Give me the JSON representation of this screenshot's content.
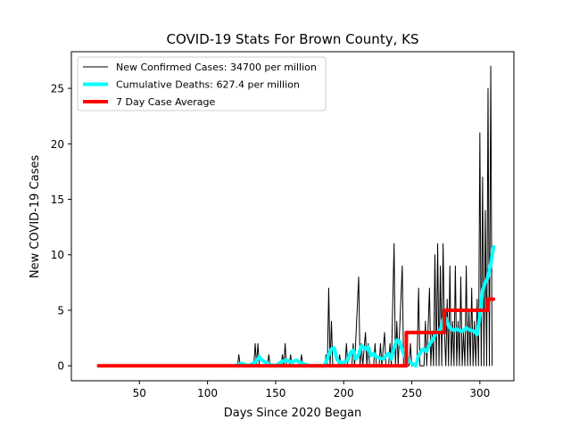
{
  "chart_data": {
    "type": "line",
    "title": "COVID-19 Stats For Brown County, KS",
    "xlabel": "Days Since 2020 Began",
    "ylabel": "New COVID-19 Cases",
    "xlim": [
      0,
      325
    ],
    "ylim": [
      -1.35,
      28.3
    ],
    "x_ticks": [
      50,
      100,
      150,
      200,
      250,
      300
    ],
    "y_ticks": [
      0,
      5,
      10,
      15,
      20,
      25
    ],
    "legend_position": "top-left",
    "grid": false,
    "series": [
      {
        "name": "New Confirmed Cases: 34700 per million",
        "color": "#000000",
        "style": "thin",
        "points": [
          [
            20,
            0
          ],
          [
            122,
            0
          ],
          [
            123,
            1
          ],
          [
            124,
            0
          ],
          [
            134,
            0
          ],
          [
            135,
            2
          ],
          [
            136,
            0
          ],
          [
            137,
            2
          ],
          [
            138,
            0
          ],
          [
            144,
            0
          ],
          [
            145,
            1
          ],
          [
            146,
            0
          ],
          [
            154,
            0
          ],
          [
            155,
            1
          ],
          [
            156,
            0
          ],
          [
            157,
            2
          ],
          [
            158,
            0
          ],
          [
            160,
            0
          ],
          [
            161,
            1
          ],
          [
            162,
            0
          ],
          [
            168,
            0
          ],
          [
            169,
            1
          ],
          [
            170,
            0
          ],
          [
            186,
            0
          ],
          [
            187,
            1
          ],
          [
            188,
            0
          ],
          [
            189,
            7
          ],
          [
            190,
            0
          ],
          [
            191,
            4
          ],
          [
            192,
            0
          ],
          [
            196,
            0
          ],
          [
            197,
            1
          ],
          [
            198,
            0
          ],
          [
            201,
            0
          ],
          [
            202,
            2
          ],
          [
            203,
            0
          ],
          [
            206,
            0
          ],
          [
            207,
            2
          ],
          [
            208,
            0
          ],
          [
            211,
            8
          ],
          [
            212,
            0
          ],
          [
            213,
            2
          ],
          [
            214,
            0
          ],
          [
            216,
            3
          ],
          [
            217,
            0
          ],
          [
            218,
            2
          ],
          [
            219,
            0
          ],
          [
            222,
            0
          ],
          [
            223,
            2
          ],
          [
            224,
            0
          ],
          [
            226,
            0
          ],
          [
            227,
            2
          ],
          [
            228,
            0
          ],
          [
            230,
            3
          ],
          [
            231,
            0
          ],
          [
            233,
            0
          ],
          [
            234,
            2
          ],
          [
            235,
            0
          ],
          [
            237,
            11
          ],
          [
            238,
            0
          ],
          [
            239,
            4
          ],
          [
            240,
            0
          ],
          [
            243,
            9
          ],
          [
            244,
            0
          ],
          [
            248,
            0
          ],
          [
            249,
            2
          ],
          [
            250,
            0
          ],
          [
            252,
            0
          ],
          [
            253,
            0
          ],
          [
            254,
            1
          ],
          [
            255,
            7
          ],
          [
            256,
            0
          ],
          [
            258,
            0
          ],
          [
            259,
            0
          ],
          [
            260,
            4
          ],
          [
            261,
            0
          ],
          [
            263,
            7
          ],
          [
            264,
            0
          ],
          [
            265,
            3
          ],
          [
            266,
            0
          ],
          [
            267,
            10
          ],
          [
            268,
            0
          ],
          [
            269,
            11
          ],
          [
            270,
            0
          ],
          [
            271,
            9
          ],
          [
            272,
            0
          ],
          [
            273,
            11
          ],
          [
            274,
            3
          ],
          [
            275,
            0
          ],
          [
            276,
            6
          ],
          [
            277,
            0
          ],
          [
            278,
            9
          ],
          [
            279,
            0
          ],
          [
            280,
            4
          ],
          [
            281,
            0
          ],
          [
            282,
            9
          ],
          [
            283,
            0
          ],
          [
            284,
            4
          ],
          [
            285,
            0
          ],
          [
            286,
            8
          ],
          [
            287,
            0
          ],
          [
            288,
            3
          ],
          [
            289,
            0
          ],
          [
            290,
            9
          ],
          [
            291,
            0
          ],
          [
            292,
            5
          ],
          [
            293,
            0
          ],
          [
            294,
            7
          ],
          [
            295,
            0
          ],
          [
            296,
            4
          ],
          [
            297,
            0
          ],
          [
            298,
            6
          ],
          [
            299,
            0
          ],
          [
            300,
            21
          ],
          [
            301,
            0
          ],
          [
            302,
            17
          ],
          [
            303,
            0
          ],
          [
            304,
            14
          ],
          [
            305,
            0
          ],
          [
            306,
            25
          ],
          [
            307,
            0
          ],
          [
            308,
            27
          ],
          [
            309,
            0
          ]
        ]
      },
      {
        "name": "Cumulative Deaths: 627.4 per million",
        "color": "#00ffff",
        "style": "thick",
        "points": [
          [
            120,
            0
          ],
          [
            125,
            0.2
          ],
          [
            130,
            0
          ],
          [
            135,
            0.3
          ],
          [
            138,
            0.8
          ],
          [
            140,
            0.5
          ],
          [
            143,
            0.3
          ],
          [
            146,
            0.1
          ],
          [
            150,
            0
          ],
          [
            155,
            0.4
          ],
          [
            158,
            0.5
          ],
          [
            162,
            0.3
          ],
          [
            165,
            0.5
          ],
          [
            168,
            0.3
          ],
          [
            172,
            0.1
          ],
          [
            176,
            0
          ],
          [
            186,
            0
          ],
          [
            189,
            1.0
          ],
          [
            191,
            1.5
          ],
          [
            193,
            1.6
          ],
          [
            195,
            0.6
          ],
          [
            197,
            0.3
          ],
          [
            200,
            0.3
          ],
          [
            203,
            0.5
          ],
          [
            205,
            1.2
          ],
          [
            207,
            1.4
          ],
          [
            209,
            0.6
          ],
          [
            211,
            1.0
          ],
          [
            213,
            1.8
          ],
          [
            216,
            1.5
          ],
          [
            218,
            1.7
          ],
          [
            220,
            0.9
          ],
          [
            222,
            1.1
          ],
          [
            224,
            0.8
          ],
          [
            226,
            0.7
          ],
          [
            229,
            0.6
          ],
          [
            231,
            0.9
          ],
          [
            233,
            1.1
          ],
          [
            235,
            0.6
          ],
          [
            237,
            1.6
          ],
          [
            239,
            2.3
          ],
          [
            241,
            2.2
          ],
          [
            243,
            1.4
          ],
          [
            245,
            0.8
          ],
          [
            247,
            0.6
          ],
          [
            250,
            0.2
          ],
          [
            253,
            0
          ],
          [
            255,
            0.9
          ],
          [
            258,
            1.5
          ],
          [
            261,
            1.3
          ],
          [
            263,
            1.9
          ],
          [
            266,
            2.5
          ],
          [
            268,
            3.0
          ],
          [
            271,
            3.2
          ],
          [
            273,
            4.2
          ],
          [
            275,
            4.3
          ],
          [
            277,
            3.6
          ],
          [
            279,
            3.3
          ],
          [
            281,
            3.2
          ],
          [
            283,
            3.3
          ],
          [
            285,
            3.2
          ],
          [
            287,
            3.1
          ],
          [
            290,
            3.4
          ],
          [
            293,
            3.2
          ],
          [
            296,
            3.1
          ],
          [
            298,
            2.8
          ],
          [
            300,
            4.5
          ],
          [
            302,
            6.8
          ],
          [
            304,
            7.5
          ],
          [
            306,
            8.0
          ],
          [
            308,
            9.2
          ],
          [
            310,
            10.7
          ]
        ]
      },
      {
        "name": "7 Day Case Average",
        "color": "#ff0000",
        "style": "thick",
        "points": [
          [
            20,
            0
          ],
          [
            246,
            0
          ],
          [
            246,
            3
          ],
          [
            274,
            3
          ],
          [
            274,
            5
          ],
          [
            306,
            5
          ],
          [
            306,
            6
          ],
          [
            310,
            6
          ]
        ]
      }
    ]
  }
}
